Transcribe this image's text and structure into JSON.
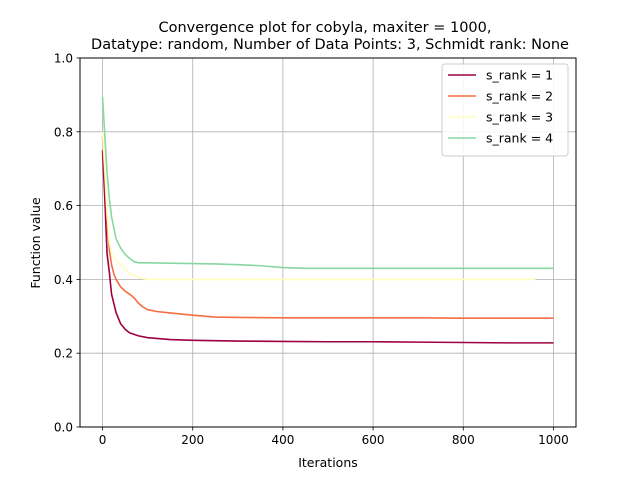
{
  "chart_data": {
    "type": "line",
    "title_line1": "Convergence plot for cobyla, maxiter = 1000,",
    "title_line2": "Datatype: random, Number of Data Points: 3, Schmidt rank: None",
    "xlabel": "Iterations",
    "ylabel": "Function value",
    "xlim": [
      -50,
      1050
    ],
    "ylim": [
      0.0,
      1.0
    ],
    "xticks": [
      0,
      200,
      400,
      600,
      800,
      1000
    ],
    "xtick_labels": [
      "0",
      "200",
      "400",
      "600",
      "800",
      "1000"
    ],
    "yticks": [
      0.0,
      0.2,
      0.4,
      0.6,
      0.8,
      1.0
    ],
    "ytick_labels": [
      "0.0",
      "0.2",
      "0.4",
      "0.6",
      "0.8",
      "1.0"
    ],
    "grid": true,
    "legend_position": "top-right",
    "series": [
      {
        "name": "s_rank = 1",
        "color": "#9e0142",
        "x": [
          0,
          5,
          10,
          15,
          20,
          30,
          40,
          50,
          60,
          80,
          100,
          150,
          200,
          300,
          400,
          500,
          600,
          700,
          800,
          900,
          1000
        ],
        "y": [
          0.75,
          0.62,
          0.47,
          0.42,
          0.36,
          0.31,
          0.28,
          0.265,
          0.255,
          0.247,
          0.242,
          0.237,
          0.235,
          0.233,
          0.232,
          0.231,
          0.231,
          0.23,
          0.229,
          0.228,
          0.228
        ]
      },
      {
        "name": "s_rank = 2",
        "color": "#f46d43",
        "x": [
          0,
          5,
          10,
          15,
          20,
          25,
          30,
          40,
          50,
          60,
          70,
          80,
          90,
          100,
          120,
          150,
          200,
          250,
          300,
          400,
          500,
          600,
          700,
          800,
          900,
          1000
        ],
        "y": [
          0.79,
          0.68,
          0.56,
          0.48,
          0.44,
          0.415,
          0.4,
          0.38,
          0.368,
          0.36,
          0.35,
          0.335,
          0.325,
          0.318,
          0.313,
          0.309,
          0.303,
          0.298,
          0.297,
          0.296,
          0.296,
          0.296,
          0.296,
          0.295,
          0.295,
          0.295
        ]
      },
      {
        "name": "s_rank = 3",
        "color": "#fefebd",
        "x": [
          0,
          5,
          10,
          15,
          20,
          30,
          40,
          50,
          60,
          80,
          100,
          150,
          200,
          300,
          400,
          500,
          600,
          700,
          800,
          900,
          960
        ],
        "y": [
          0.8,
          0.7,
          0.58,
          0.5,
          0.47,
          0.45,
          0.44,
          0.43,
          0.415,
          0.405,
          0.4,
          0.4,
          0.4,
          0.4,
          0.4,
          0.4,
          0.4,
          0.4,
          0.4,
          0.4,
          0.4
        ]
      },
      {
        "name": "s_rank = 4",
        "color": "#88d7a3",
        "x": [
          0,
          5,
          10,
          15,
          20,
          25,
          30,
          40,
          50,
          60,
          70,
          80,
          100,
          150,
          200,
          250,
          300,
          350,
          400,
          450,
          500,
          600,
          700,
          800,
          900,
          1000
        ],
        "y": [
          0.895,
          0.79,
          0.69,
          0.62,
          0.57,
          0.54,
          0.51,
          0.485,
          0.468,
          0.457,
          0.448,
          0.445,
          0.445,
          0.444,
          0.443,
          0.442,
          0.44,
          0.437,
          0.432,
          0.43,
          0.43,
          0.43,
          0.43,
          0.43,
          0.43,
          0.43
        ]
      }
    ]
  }
}
